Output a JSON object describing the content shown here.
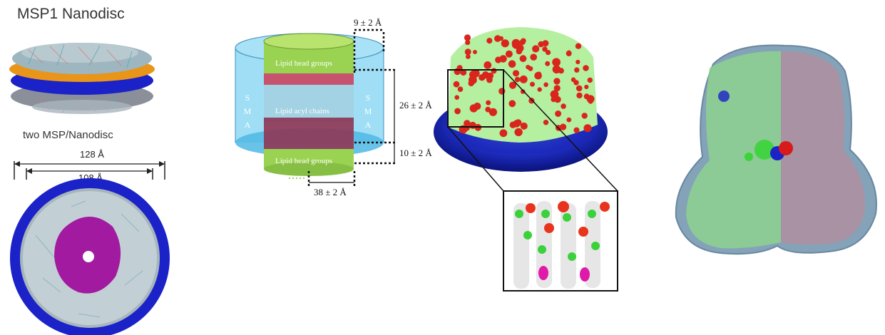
{
  "panel1": {
    "title": "MSP1 Nanodisc",
    "subtitle": "two MSP/Nanodisc",
    "outer_diameter": "128 Å",
    "inner_diameter": "108 Å"
  },
  "panel2": {
    "top_thickness": "9 ± 2 Å",
    "core_height": "26 ± 2 Å",
    "bottom_height": "10 ± 2 Å",
    "bottom_width": "38 ± 2 Å",
    "head_top": "Lipid head groups",
    "acyl": "Lipid acyl chains",
    "head_bottom": "Lipid head groups",
    "sma_left": [
      "S",
      "M",
      "A"
    ],
    "sma_right": [
      "S",
      "M",
      "A"
    ]
  },
  "colors": {
    "msp_blue": "#1a22c8",
    "msp_orange": "#e8951a",
    "membrane_magenta": "#a11aa0",
    "sma_cyan": "#7fd3f2",
    "head_green": "#9ad252",
    "acyl_maroon": "#8a2a4a",
    "lipid_red": "#d8261c",
    "lipid_green": "#b5f0a0",
    "envelope": "#6f93ad"
  }
}
